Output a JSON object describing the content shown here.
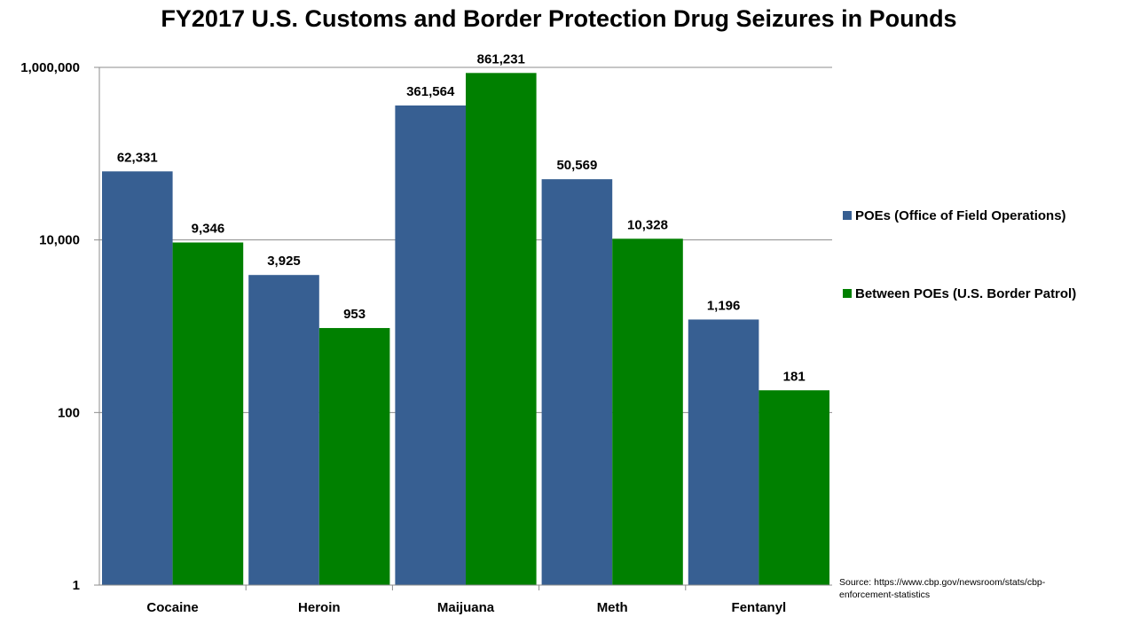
{
  "chart_data": {
    "type": "bar",
    "title": "FY2017 U.S. Customs and Border Protection Drug Seizures in Pounds",
    "categories": [
      "Cocaine",
      "Heroin",
      "Maijuana",
      "Meth",
      "Fentanyl"
    ],
    "series": [
      {
        "name": "POEs (Office of Field Operations)",
        "values": [
          62331,
          3925,
          361564,
          50569,
          1196
        ],
        "labels": [
          "62,331",
          "3,925",
          "361,564",
          "50,569",
          "1,196"
        ],
        "color": "#375F92"
      },
      {
        "name": "Between POEs (U.S. Border Patrol)",
        "values": [
          9346,
          953,
          861231,
          10328,
          181
        ],
        "labels": [
          "9,346",
          "953",
          "861,231",
          "10,328",
          "181"
        ],
        "color": "#008000"
      }
    ],
    "yscale": "log",
    "ylim": [
      1,
      1000000
    ],
    "yticks": [
      1,
      100,
      10000,
      1000000
    ],
    "ytick_labels": [
      "1",
      "100",
      "10,000",
      "1,000,000"
    ],
    "grid": true,
    "legend_position": "right",
    "source": "Source: https://www.cbp.gov/newsroom/stats/cbp-enforcement-statistics"
  }
}
